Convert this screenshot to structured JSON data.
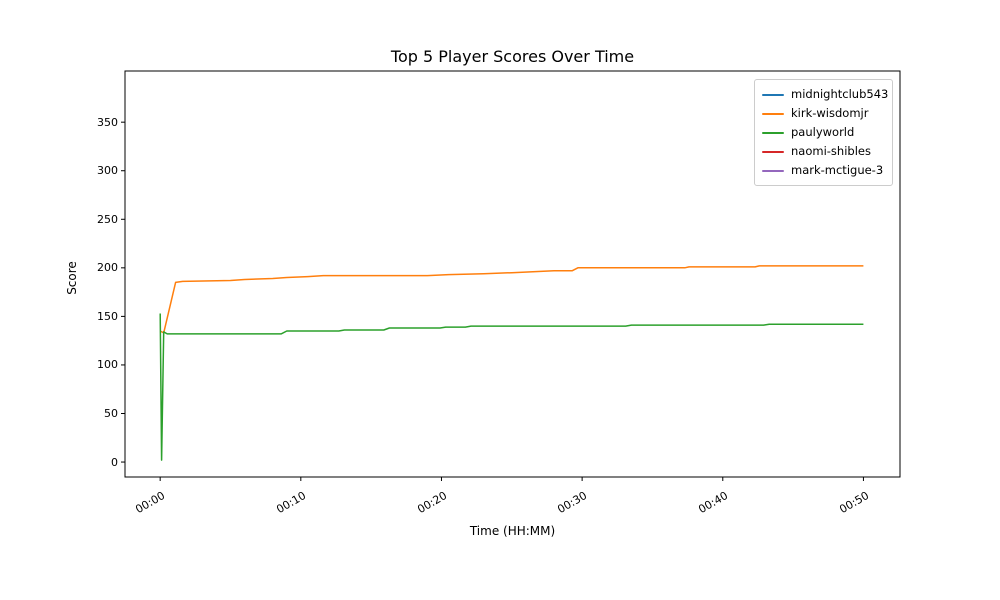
{
  "figure": {
    "title": "Top 5 Player Scores Over Time",
    "xlabel": "Time (HH:MM)",
    "ylabel": "Score"
  },
  "chart_data": {
    "type": "line",
    "title": "Top 5 Player Scores Over Time",
    "xlabel": "Time (HH:MM)",
    "ylabel": "Score",
    "x_unit": "minutes",
    "xlim": [
      -2.5,
      52.6
    ],
    "ylim": [
      -15.4,
      402.7
    ],
    "grid": false,
    "legend_position": "upper right",
    "axis_color": "#000000",
    "xticks": [
      {
        "t": 0,
        "label": "00:00"
      },
      {
        "t": 10,
        "label": "00:10"
      },
      {
        "t": 20,
        "label": "00:20"
      },
      {
        "t": 30,
        "label": "00:30"
      },
      {
        "t": 40,
        "label": "00:40"
      },
      {
        "t": 50,
        "label": "00:50"
      }
    ],
    "yticks": [
      0,
      50,
      100,
      150,
      200,
      250,
      300,
      350
    ],
    "series": [
      {
        "name": "midnightclub543",
        "color": "#1f77b4",
        "points": []
      },
      {
        "name": "kirk-wisdomjr",
        "color": "#ff7f0e",
        "points": [
          [
            0,
            135
          ],
          [
            0.25,
            133
          ],
          [
            1.1,
            185
          ],
          [
            1.6,
            186
          ],
          [
            5,
            187
          ],
          [
            6,
            188
          ],
          [
            8,
            189
          ],
          [
            9,
            190
          ],
          [
            10.5,
            191
          ],
          [
            11.6,
            192
          ],
          [
            19,
            192
          ],
          [
            20.5,
            193
          ],
          [
            23,
            194
          ],
          [
            25,
            195
          ],
          [
            26.5,
            196
          ],
          [
            28,
            197
          ],
          [
            29.3,
            197
          ],
          [
            29.7,
            200
          ],
          [
            37.3,
            200
          ],
          [
            37.6,
            201
          ],
          [
            42.3,
            201
          ],
          [
            42.6,
            202
          ],
          [
            50,
            202
          ]
        ]
      },
      {
        "name": "paulyworld",
        "color": "#2ca02c",
        "points": [
          [
            0,
            153
          ],
          [
            0.1,
            2
          ],
          [
            0.25,
            134
          ],
          [
            0.5,
            132
          ],
          [
            8.6,
            132
          ],
          [
            9,
            135
          ],
          [
            12.7,
            135
          ],
          [
            13.1,
            136
          ],
          [
            15.9,
            136
          ],
          [
            16.3,
            138
          ],
          [
            19.9,
            138
          ],
          [
            20.3,
            139
          ],
          [
            21.7,
            139
          ],
          [
            22.1,
            140
          ],
          [
            33.1,
            140
          ],
          [
            33.5,
            141
          ],
          [
            42.9,
            141
          ],
          [
            43.3,
            142
          ],
          [
            50,
            142
          ]
        ]
      },
      {
        "name": "naomi-shibles",
        "color": "#d62728",
        "points": []
      },
      {
        "name": "mark-mctigue-3",
        "color": "#9467bd",
        "points": []
      }
    ]
  }
}
